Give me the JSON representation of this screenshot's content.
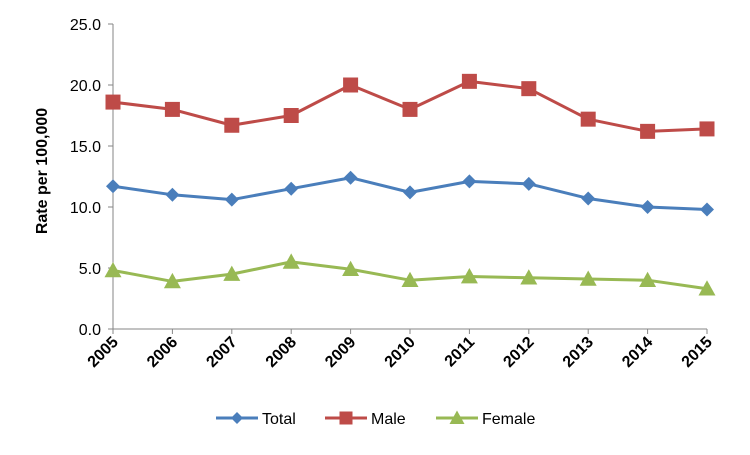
{
  "chart_data": {
    "type": "line",
    "ylabel": "Rate per 100,000",
    "xlabel": "",
    "ylim": [
      0,
      25
    ],
    "yticks": [
      "0.0",
      "5.0",
      "10.0",
      "15.0",
      "20.0",
      "25.0"
    ],
    "categories": [
      "2005",
      "2006",
      "2007",
      "2008",
      "2009",
      "2010",
      "2011",
      "2012",
      "2013",
      "2014",
      "2015"
    ],
    "grid": false,
    "legend_position": "bottom",
    "series": [
      {
        "name": "Total",
        "color": "#4A7EBB",
        "marker": "diamond",
        "values": [
          11.7,
          11.0,
          10.6,
          11.5,
          12.4,
          11.2,
          12.1,
          11.9,
          10.7,
          10.0,
          9.8
        ]
      },
      {
        "name": "Male",
        "color": "#BE4B48",
        "marker": "square",
        "values": [
          18.6,
          18.0,
          16.7,
          17.5,
          20.0,
          18.0,
          20.3,
          19.7,
          17.2,
          16.2,
          16.4
        ]
      },
      {
        "name": "Female",
        "color": "#98B954",
        "marker": "triangle",
        "values": [
          4.8,
          3.9,
          4.5,
          5.5,
          4.9,
          4.0,
          4.3,
          4.2,
          4.1,
          4.0,
          3.3
        ]
      }
    ]
  }
}
